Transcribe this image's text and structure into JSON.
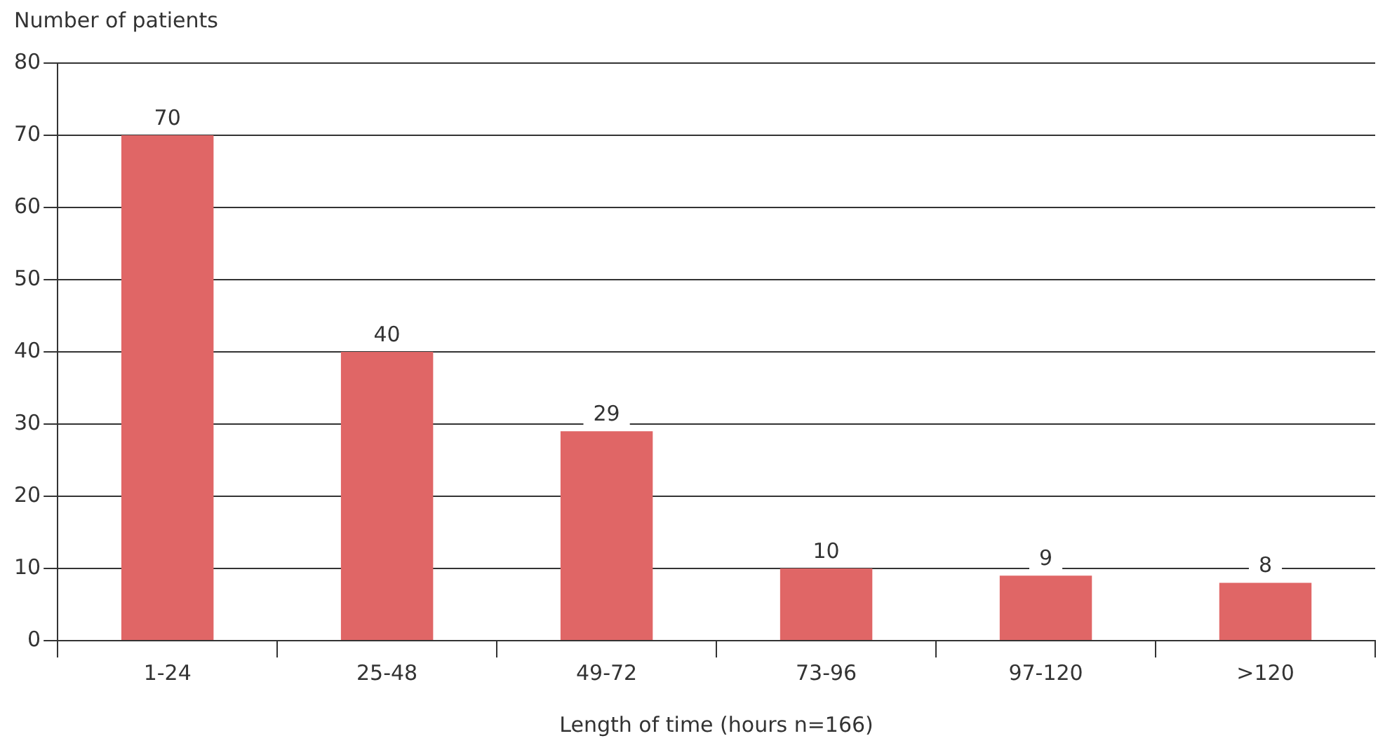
{
  "chart_data": {
    "type": "bar",
    "ylabel": "Number of patients",
    "xlabel": "Length of time (hours n=166)",
    "categories": [
      "1-24",
      "25-48",
      "49-72",
      "73-96",
      "97-120",
      ">120"
    ],
    "values": [
      70,
      40,
      29,
      10,
      9,
      8
    ],
    "color": "#e06666",
    "ylim": [
      0,
      80
    ],
    "yticks": [
      0,
      10,
      20,
      30,
      40,
      50,
      60,
      70,
      80
    ],
    "grid": "y",
    "data_labels": true,
    "legend": false
  }
}
